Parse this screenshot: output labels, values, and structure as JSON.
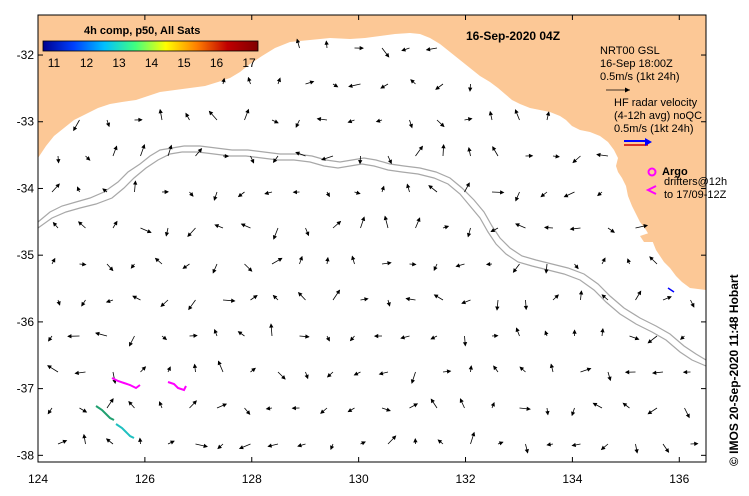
{
  "map": {
    "title": "16-Sep-2020 04Z",
    "colorbar": {
      "title": "4h comp, p50, All Sats",
      "ticks": [
        "11",
        "12",
        "13",
        "14",
        "15",
        "16",
        "17"
      ],
      "stops": [
        "#00008f",
        "#0040ff",
        "#00c0ff",
        "#40ff80",
        "#ffff00",
        "#ff8000",
        "#c00000",
        "#800000"
      ]
    },
    "x_axis": {
      "ticks": [
        "124",
        "126",
        "128",
        "130",
        "132",
        "134",
        "136"
      ],
      "range": [
        124,
        136.5
      ]
    },
    "y_axis": {
      "ticks": [
        "-32",
        "-33",
        "-34",
        "-35",
        "-36",
        "-37",
        "-38"
      ],
      "range": [
        -38.1,
        -31.4
      ]
    },
    "legend": {
      "nrt_line1": "NRT00 GSL",
      "nrt_line2": "16-Sep 18:00Z",
      "nrt_line3": "0.5m/s (1kt 24h)",
      "hf_line1": "HF radar velocity",
      "hf_line2": "(4-12h avg) noQC",
      "hf_line3": "0.5m/s (1kt 24h)",
      "argo_label": "Argo",
      "drifters_line1": "drifters@12h",
      "drifters_line2": "to 17/09-12Z"
    },
    "credit": "© IMOS 20-Sep-2020 11:48 Hobart",
    "colors": {
      "land": "#fcc896",
      "isobath": "#a8a8a8",
      "argo": "#ff00ff",
      "drifter": "#ff00ff",
      "hf_radar": "#0000ff"
    }
  }
}
